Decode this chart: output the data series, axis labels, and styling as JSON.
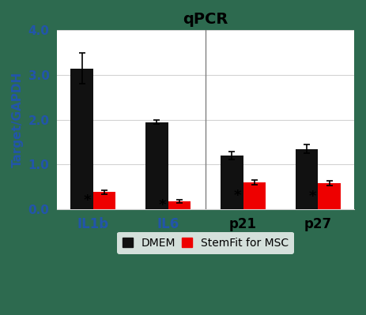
{
  "title": "qPCR",
  "ylabel": "Target/GAPDH",
  "groups": [
    "IL1b",
    "IL6",
    "p21",
    "p27"
  ],
  "dmem_values": [
    3.15,
    1.95,
    1.2,
    1.35
  ],
  "dmem_errors": [
    0.35,
    0.05,
    0.08,
    0.09
  ],
  "stemfit_values": [
    0.38,
    0.18,
    0.6,
    0.58
  ],
  "stemfit_errors": [
    0.04,
    0.04,
    0.05,
    0.05
  ],
  "dmem_color": "#111111",
  "stemfit_color": "#ee0000",
  "ylim": [
    0,
    4.0
  ],
  "yticks": [
    0.0,
    1.0,
    2.0,
    3.0,
    4.0
  ],
  "bar_width": 0.3,
  "figure_bg": "#2d6a4f",
  "plot_bg": "#ffffff",
  "legend_dmem": "DMEM",
  "legend_stemfit": "StemFit for MSC",
  "ylabel_color": "#2255aa",
  "ytick_color": "#2255aa",
  "xtick_color": "#000000",
  "title_color": "#000000"
}
